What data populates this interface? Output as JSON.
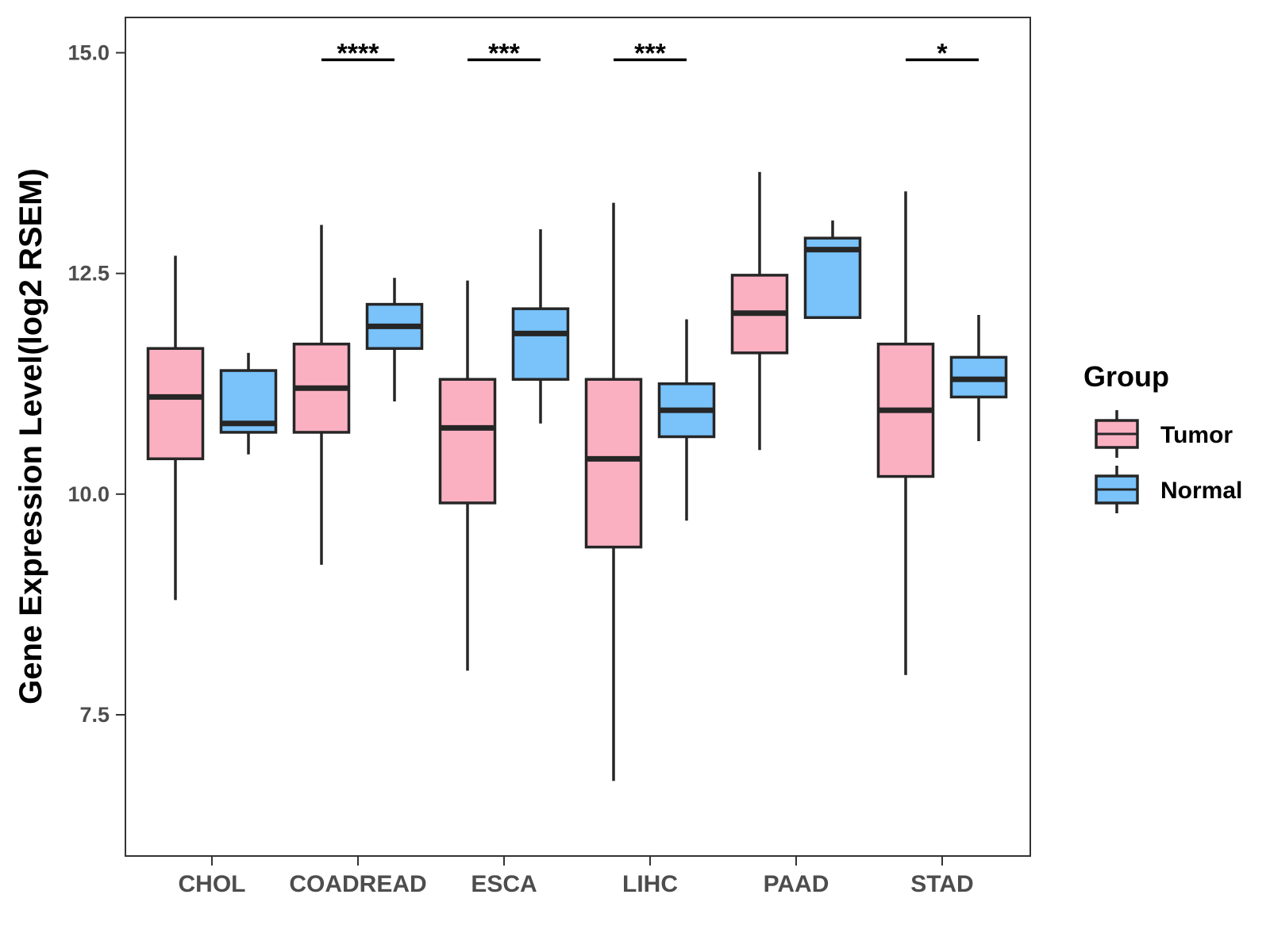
{
  "chart_data": {
    "type": "boxplot",
    "title": "",
    "xlabel": "",
    "ylabel": "Gene Expression Level(log2 RSEM)",
    "ylim": [
      5.9,
      15.4
    ],
    "yticks": [
      7.5,
      10.0,
      12.5,
      15.0
    ],
    "ytick_labels": [
      "7.5",
      "10.0",
      "12.5",
      "15.0"
    ],
    "categories": [
      "CHOL",
      "COADREAD",
      "ESCA",
      "LIHC",
      "PAAD",
      "STAD"
    ],
    "legend": {
      "title": "Group",
      "position": "right",
      "entries": [
        {
          "name": "Tumor",
          "color": "#fbb0c2"
        },
        {
          "name": "Normal",
          "color": "#79c2fa"
        }
      ]
    },
    "series": [
      {
        "name": "Tumor",
        "color": "#fbb0c2",
        "boxes": [
          {
            "category": "CHOL",
            "min": 8.8,
            "q1": 10.4,
            "median": 11.1,
            "q3": 11.65,
            "max": 12.7
          },
          {
            "category": "COADREAD",
            "min": 9.2,
            "q1": 10.7,
            "median": 11.2,
            "q3": 11.7,
            "max": 13.05
          },
          {
            "category": "ESCA",
            "min": 8.0,
            "q1": 9.9,
            "median": 10.75,
            "q3": 11.3,
            "max": 12.42
          },
          {
            "category": "LIHC",
            "min": 6.75,
            "q1": 9.4,
            "median": 10.4,
            "q3": 11.3,
            "max": 13.3
          },
          {
            "category": "PAAD",
            "min": 10.5,
            "q1": 11.6,
            "median": 12.05,
            "q3": 12.48,
            "max": 13.65
          },
          {
            "category": "STAD",
            "min": 7.95,
            "q1": 10.2,
            "median": 10.95,
            "q3": 11.7,
            "max": 13.43
          }
        ]
      },
      {
        "name": "Normal",
        "color": "#79c2fa",
        "boxes": [
          {
            "category": "CHOL",
            "min": 10.45,
            "q1": 10.7,
            "median": 10.8,
            "q3": 11.4,
            "max": 11.6
          },
          {
            "category": "COADREAD",
            "min": 11.05,
            "q1": 11.65,
            "median": 11.9,
            "q3": 12.15,
            "max": 12.45
          },
          {
            "category": "ESCA",
            "min": 10.8,
            "q1": 11.3,
            "median": 11.82,
            "q3": 12.1,
            "max": 13.0
          },
          {
            "category": "LIHC",
            "min": 9.7,
            "q1": 10.65,
            "median": 10.95,
            "q3": 11.25,
            "max": 11.98
          },
          {
            "category": "PAAD",
            "min": 12.0,
            "q1": 12.0,
            "median": 12.77,
            "q3": 12.9,
            "max": 13.1
          },
          {
            "category": "STAD",
            "min": 10.6,
            "q1": 11.1,
            "median": 11.3,
            "q3": 11.55,
            "max": 12.03
          }
        ]
      }
    ],
    "significance": [
      {
        "category": "COADREAD",
        "label": "****",
        "y": 14.92
      },
      {
        "category": "ESCA",
        "label": "***",
        "y": 14.92
      },
      {
        "category": "LIHC",
        "label": "***",
        "y": 14.92
      },
      {
        "category": "STAD",
        "label": "*",
        "y": 14.92
      }
    ]
  }
}
